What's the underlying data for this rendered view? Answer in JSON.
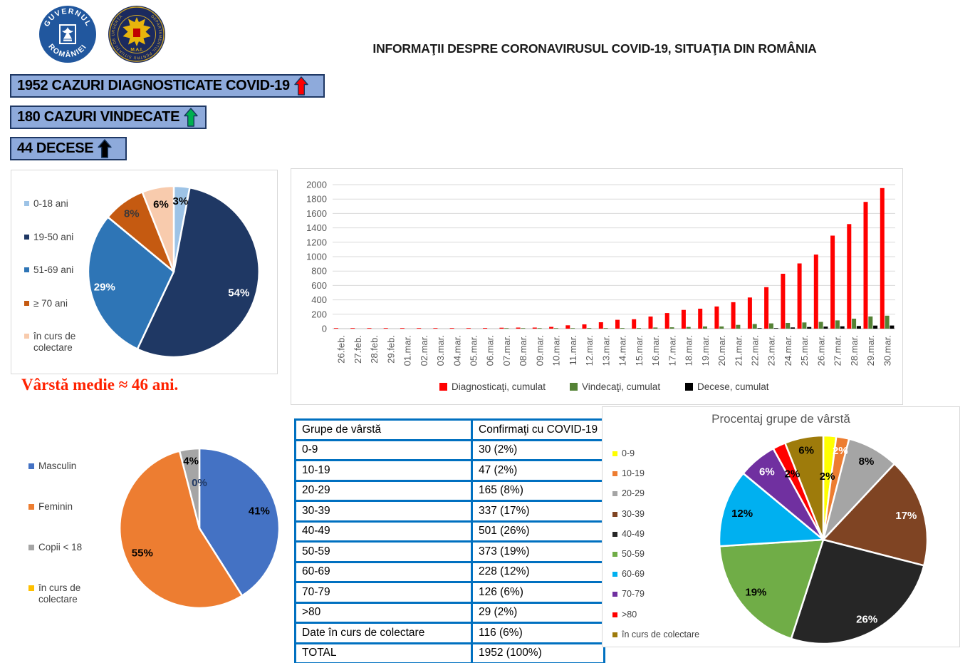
{
  "header": {
    "title": "INFORMAŢII DESPRE CORONAVIRUSUL COVID-19, SITUAŢIA DIN ROMÂNIA",
    "logos": [
      {
        "name": "Guvernul României",
        "text_top": "GUVERNUL",
        "text_bottom": "ROMÂNIEI"
      },
      {
        "name": "Departamentul pentru Situaţii de Urgenţă",
        "ring_text": "DEPARTAMENTUL PENTRU SITUAŢII DE URGENŢĂ",
        "bottom_text": "M.A.I."
      }
    ]
  },
  "stats": [
    {
      "label": "1952 CAZURI DIAGNOSTICATE COVID-19",
      "arrow_color": "#FF0000"
    },
    {
      "label": "180 CAZURI VINDECATE",
      "arrow_color": "#00B050"
    },
    {
      "label": "44 DECESE",
      "arrow_color": "#000000"
    }
  ],
  "average_age_note": "Vârstă medie ≈ 46 ani.",
  "theme": {
    "stat_box_bg": "#8EAADB",
    "stat_box_border": "#1F3864",
    "table_border": "#0070C0",
    "note_color": "#FF2200",
    "panel_border": "#D9D9D9"
  },
  "chart_data": [
    {
      "id": "age-groups-pie",
      "type": "pie",
      "labels": [
        "0-18 ani",
        "19-50 ani",
        "51-69 ani",
        "≥ 70 ani",
        "în curs de colectare"
      ],
      "values": [
        3,
        54,
        29,
        8,
        6
      ],
      "colors": [
        "#9DC3E6",
        "#1F3864",
        "#2E75B6",
        "#C55A11",
        "#F8CBAD"
      ],
      "label_colors": [
        "#000000",
        "#FFFFFF",
        "#FFFFFF",
        "#3B3838",
        "#000000"
      ],
      "label_r": [
        0.83,
        0.8,
        0.83,
        0.84,
        0.8
      ],
      "legend_position": "left"
    },
    {
      "id": "cumulative-timeline",
      "type": "bar",
      "categories": [
        "26.feb.",
        "27.feb.",
        "28.feb.",
        "29.feb.",
        "01.mar.",
        "02.mar.",
        "03.mar.",
        "04.mar.",
        "05.mar.",
        "06.mar.",
        "07.mar.",
        "08.mar.",
        "09.mar.",
        "10.mar.",
        "11.mar.",
        "12.mar.",
        "13.mar.",
        "14.mar.",
        "15.mar.",
        "16.mar.",
        "17.mar.",
        "18.mar.",
        "19.mar.",
        "20.mar.",
        "21.mar.",
        "22.mar.",
        "23.mar.",
        "24.mar.",
        "25.mar.",
        "26.mar.",
        "27.mar.",
        "28.mar.",
        "29.mar.",
        "30.mar."
      ],
      "series": [
        {
          "name": "Diagnosticaţi, cumulat",
          "color": "#FF0000",
          "values": [
            1,
            3,
            3,
            3,
            3,
            3,
            4,
            6,
            6,
            9,
            13,
            15,
            15,
            25,
            47,
            59,
            89,
            123,
            131,
            168,
            217,
            260,
            277,
            308,
            367,
            433,
            576,
            762,
            906,
            1029,
            1292,
            1452,
            1760,
            1952
          ]
        },
        {
          "name": "Vindecaţi, cumulat",
          "color": "#548235",
          "values": [
            0,
            0,
            0,
            0,
            0,
            0,
            0,
            0,
            0,
            0,
            1,
            3,
            4,
            6,
            6,
            9,
            9,
            9,
            9,
            16,
            19,
            24,
            31,
            31,
            52,
            64,
            73,
            79,
            86,
            94,
            115,
            139,
            169,
            180
          ]
        },
        {
          "name": "Decese, cumulat",
          "color": "#000000",
          "values": [
            0,
            0,
            0,
            0,
            0,
            0,
            0,
            0,
            0,
            0,
            0,
            0,
            0,
            0,
            0,
            0,
            0,
            0,
            0,
            0,
            0,
            0,
            0,
            0,
            0,
            3,
            8,
            17,
            23,
            29,
            33,
            37,
            43,
            44
          ]
        }
      ],
      "ylim": [
        0,
        2000
      ],
      "ytick_step": 200,
      "grid": true,
      "grid_color": "#D9D9D9",
      "axis_color": "#BFBFBF",
      "tick_color": "#595959",
      "legend_position": "bottom"
    },
    {
      "id": "gender-pie",
      "type": "pie",
      "labels": [
        "Masculin",
        "Feminin",
        "Copii < 18",
        "în curs de colectare"
      ],
      "values": [
        41,
        55,
        4,
        0
      ],
      "colors": [
        "#4472C4",
        "#ED7D31",
        "#A5A5A5",
        "#FFC000"
      ],
      "label_colors": [
        "#000000",
        "#000000",
        "#000000",
        "#1F3864"
      ],
      "label_r": [
        0.78,
        0.78,
        0.85,
        0.57
      ],
      "show_zero_labels": true,
      "legend_position": "left"
    },
    {
      "id": "age-decades-pie",
      "type": "pie",
      "title": "Procentaj grupe de vârstă",
      "labels": [
        "0-9",
        "10-19",
        "20-29",
        "30-39",
        "40-49",
        "50-59",
        "60-69",
        "70-79",
        ">80",
        "în curs de colectare"
      ],
      "values": [
        2,
        2,
        8,
        17,
        26,
        19,
        12,
        6,
        2,
        6
      ],
      "colors": [
        "#FFFF00",
        "#ED7D31",
        "#A5A5A5",
        "#7F4423",
        "#262626",
        "#70AD47",
        "#00B0F0",
        "#7030A0",
        "#FF0000",
        "#9E7B0B"
      ],
      "label_colors": [
        "#000000",
        "#FFFFFF",
        "#000000",
        "#FFFFFF",
        "#FFFFFF",
        "#000000",
        "#000000",
        "#FFFFFF",
        "#000000",
        "#000000"
      ],
      "label_r": [
        0.61,
        0.87,
        0.86,
        0.83,
        0.87,
        0.82,
        0.82,
        0.85,
        0.7,
        0.875
      ],
      "legend_position": "left"
    },
    {
      "id": "age-confirmed-table",
      "type": "table",
      "headers": [
        "Grupe de vârstă",
        "Confirmaţi cu COVID-19"
      ],
      "rows": [
        [
          "0-9",
          "30 (2%)"
        ],
        [
          "10-19",
          "47 (2%)"
        ],
        [
          "20-29",
          "165 (8%)"
        ],
        [
          "30-39",
          "337 (17%)"
        ],
        [
          "40-49",
          "501 (26%)"
        ],
        [
          "50-59",
          "373 (19%)"
        ],
        [
          "60-69",
          "228 (12%)"
        ],
        [
          "70-79",
          "126 (6%)"
        ],
        [
          ">80",
          "29 (2%)"
        ],
        [
          "Date în curs de colectare",
          "116 (6%)"
        ],
        [
          "TOTAL",
          "1952 (100%)"
        ]
      ]
    }
  ]
}
